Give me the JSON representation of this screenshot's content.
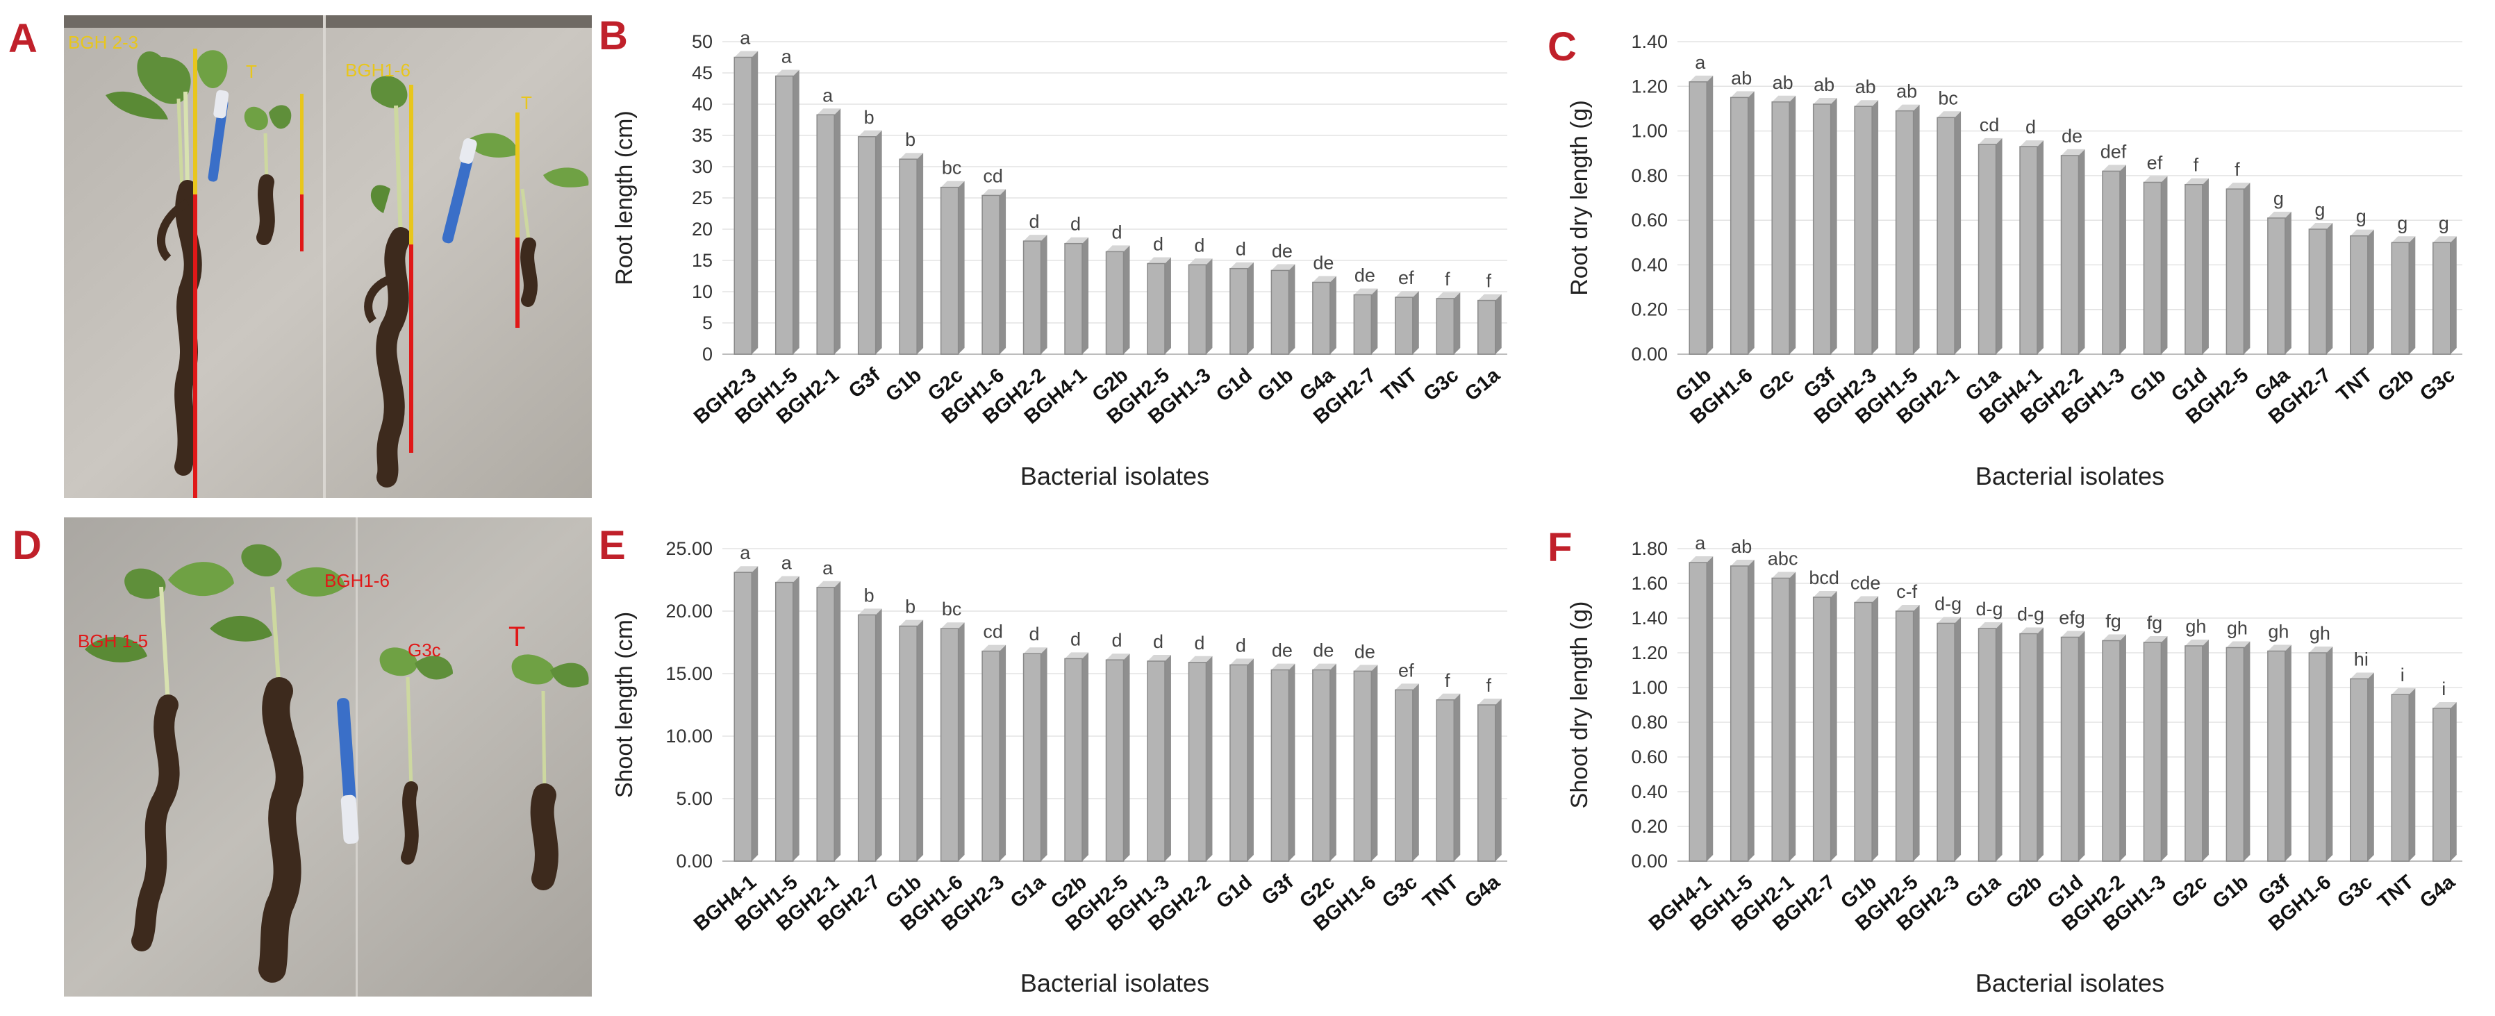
{
  "panels": [
    {
      "letter": "A"
    },
    {
      "letter": "B"
    },
    {
      "letter": "C"
    },
    {
      "letter": "D"
    },
    {
      "letter": "E"
    },
    {
      "letter": "F"
    }
  ],
  "photo_labels": {
    "a_left": "BGH 2-3",
    "a_t1": "T",
    "a_right": "BGH1-6",
    "a_t2": "T",
    "d_left": "BGH 1-5",
    "d_mid": "BGH1-6",
    "d_g3c": "G3c",
    "d_t": "T"
  },
  "colors": {
    "bar_fill": "#b4b4b4",
    "bar_edge": "#8a8a8a",
    "letter_color": "#c0202a",
    "yellow_marker": "#e8c61c",
    "red_marker": "#e01818"
  },
  "chart_data": [
    {
      "id": "B",
      "type": "bar",
      "ylabel": "Root length (cm)",
      "xlabel": "Bacterial isolates",
      "ylim": [
        0,
        50
      ],
      "yticks": [
        "0",
        "5",
        "10",
        "15",
        "20",
        "25",
        "30",
        "35",
        "40",
        "45",
        "50"
      ],
      "tick_step": 5,
      "categories": [
        "BGH2-3",
        "BGH1-5",
        "BGH2-1",
        "G3f",
        "G1b",
        "G2c",
        "BGH1-6",
        "BGH2-2",
        "BGH4-1",
        "G2b",
        "BGH2-5",
        "BGH1-3",
        "G1d",
        "G1b",
        "G4a",
        "BGH2-7",
        "TNT",
        "G3c",
        "G1a"
      ],
      "values": [
        47.5,
        44.5,
        38.3,
        34.8,
        31.2,
        26.7,
        25.4,
        18.1,
        17.7,
        16.4,
        14.5,
        14.3,
        13.7,
        13.4,
        11.5,
        9.5,
        9.1,
        8.9,
        8.6
      ],
      "labels": [
        "a",
        "a",
        "a",
        "b",
        "b",
        "bc",
        "cd",
        "d",
        "d",
        "d",
        "d",
        "d",
        "d",
        "de",
        "de",
        "de",
        "ef",
        "f",
        "f"
      ]
    },
    {
      "id": "C",
      "type": "bar",
      "ylabel": "Root dry length (g)",
      "xlabel": "Bacterial isolates",
      "ylim": [
        0,
        1.4
      ],
      "yticks": [
        "0.00",
        "0.20",
        "0.40",
        "0.60",
        "0.80",
        "1.00",
        "1.20",
        "1.40"
      ],
      "tick_step": 0.2,
      "categories": [
        "G1b",
        "BGH1-6",
        "G2c",
        "G3f",
        "BGH2-3",
        "BGH1-5",
        "BGH2-1",
        "G1a",
        "BGH4-1",
        "BGH2-2",
        "BGH1-3",
        "G1b",
        "G1d",
        "BGH2-5",
        "G4a",
        "BGH2-7",
        "TNT",
        "G2b",
        "G3c"
      ],
      "values": [
        1.22,
        1.15,
        1.13,
        1.12,
        1.11,
        1.09,
        1.06,
        0.94,
        0.93,
        0.89,
        0.82,
        0.77,
        0.76,
        0.74,
        0.61,
        0.56,
        0.53,
        0.5,
        0.5
      ],
      "labels": [
        "a",
        "ab",
        "ab",
        "ab",
        "ab",
        "ab",
        "bc",
        "cd",
        "d",
        "de",
        "def",
        "ef",
        "f",
        "f",
        "g",
        "g",
        "g",
        "g",
        "g"
      ]
    },
    {
      "id": "E",
      "type": "bar",
      "ylabel": "Shoot length (cm)",
      "xlabel": "Bacterial isolates",
      "ylim": [
        0,
        25
      ],
      "yticks": [
        "0.00",
        "5.00",
        "10.00",
        "15.00",
        "20.00",
        "25.00"
      ],
      "tick_step": 5,
      "categories": [
        "BGH4-1",
        "BGH1-5",
        "BGH2-1",
        "BGH2-7",
        "G1b",
        "BGH1-6",
        "BGH2-3",
        "G1a",
        "G2b",
        "BGH2-5",
        "BGH1-3",
        "BGH2-2",
        "G1d",
        "G3f",
        "G2c",
        "BGH1-6",
        "G3c",
        "TNT",
        "G4a"
      ],
      "values": [
        23.1,
        22.3,
        21.9,
        19.7,
        18.8,
        18.6,
        16.8,
        16.6,
        16.2,
        16.1,
        16.0,
        15.9,
        15.7,
        15.3,
        15.3,
        15.2,
        13.7,
        12.9,
        12.5
      ],
      "labels": [
        "a",
        "a",
        "a",
        "b",
        "b",
        "bc",
        "cd",
        "d",
        "d",
        "d",
        "d",
        "d",
        "d",
        "de",
        "de",
        "de",
        "ef",
        "f",
        "f"
      ]
    },
    {
      "id": "F",
      "type": "bar",
      "ylabel": "Shoot dry length (g)",
      "xlabel": "Bacterial isolates",
      "ylim": [
        0,
        1.8
      ],
      "yticks": [
        "0.00",
        "0.20",
        "0.40",
        "0.60",
        "0.80",
        "1.00",
        "1.20",
        "1.40",
        "1.60",
        "1.80"
      ],
      "tick_step": 0.2,
      "categories": [
        "BGH4-1",
        "BGH1-5",
        "BGH2-1",
        "BGH2-7",
        "G1b",
        "BGH2-5",
        "BGH2-3",
        "G1a",
        "G2b",
        "G1d",
        "BGH2-2",
        "BGH1-3",
        "G2c",
        "G1b",
        "G3f",
        "BGH1-6",
        "G3c",
        "TNT",
        "G4a"
      ],
      "values": [
        1.72,
        1.7,
        1.63,
        1.52,
        1.49,
        1.44,
        1.37,
        1.34,
        1.31,
        1.29,
        1.27,
        1.26,
        1.24,
        1.23,
        1.21,
        1.2,
        1.05,
        0.96,
        0.88
      ],
      "labels": [
        "a",
        "ab",
        "abc",
        "bcd",
        "cde",
        "c-f",
        "d-g",
        "d-g",
        "d-g",
        "efg",
        "fg",
        "fg",
        "gh",
        "gh",
        "gh",
        "gh",
        "hi",
        "i",
        "i"
      ]
    }
  ]
}
